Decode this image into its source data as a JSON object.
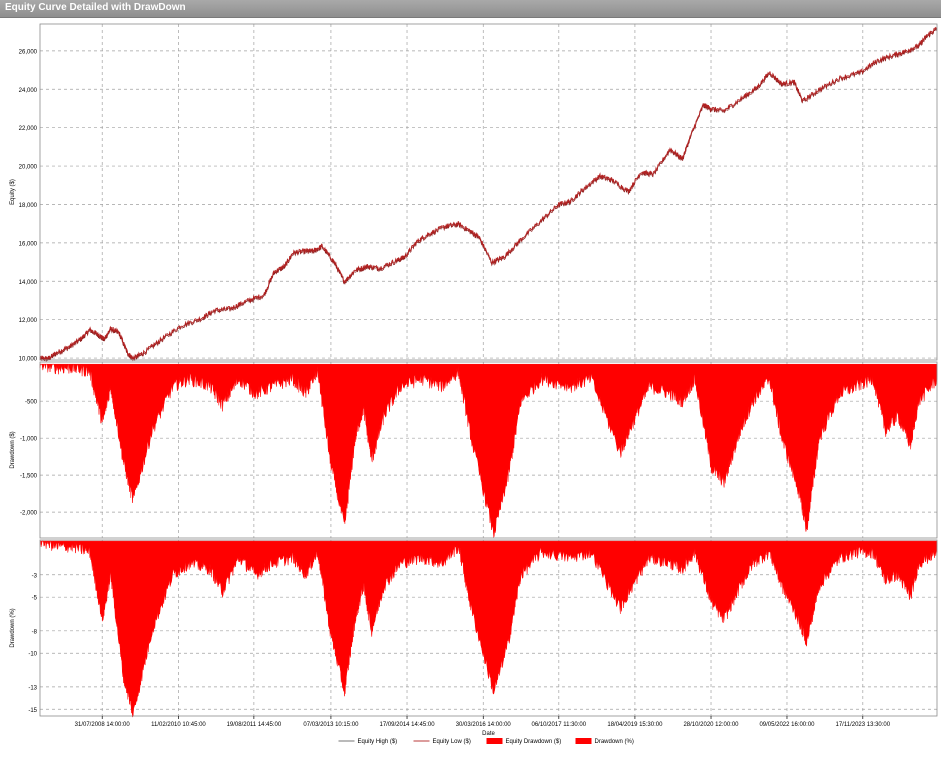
{
  "window": {
    "title": "Equity Curve Detailed with DrawDown"
  },
  "chart_data": {
    "type": "line",
    "title": "Equity Curve Detailed with DrawDown",
    "xlabel": "Date",
    "x_ticks": [
      "31/07/2008 14:00:00",
      "11/02/2010 10:45:00",
      "19/08/2011 14:45:00",
      "07/03/2013 10:15:00",
      "17/09/2014 14:45:00",
      "30/03/2016 14:00:00",
      "06/10/2017 11:30:00",
      "18/04/2019 15:30:00",
      "28/10/2020 12:00:00",
      "09/05/2022 16:00:00",
      "17/11/2023 13:30:00"
    ],
    "x_start": "2007-05-01",
    "x_end": "2025-05-15",
    "grid": true,
    "legend_position": "bottom",
    "colors": {
      "equity": "#b22222",
      "drawdown": "#ff0000",
      "grid": "#a0a0a0"
    },
    "legend": [
      "Equity High ($)",
      "Equity Low ($)",
      "Equity Drawdown ($)",
      "Drawdown (%)"
    ],
    "panels": [
      {
        "name": "equity",
        "ylabel": "Equity ($)",
        "ylim": [
          9900,
          27400
        ],
        "y_ticks": [
          10000,
          12000,
          14000,
          16000,
          18000,
          20000,
          22000,
          24000,
          26000
        ],
        "y_tick_labels": [
          "10,000",
          "12,000",
          "14,000",
          "16,000",
          "18,000",
          "20,000",
          "22,000",
          "24,000",
          "26,000"
        ],
        "series": [
          {
            "name": "Equity High ($)",
            "points": [
              [
                "2007-05-01",
                10000
              ],
              [
                "2007-07-01",
                10000
              ],
              [
                "2007-09-01",
                10300
              ],
              [
                "2007-12-01",
                10600
              ],
              [
                "2008-03-01",
                11050
              ],
              [
                "2008-05-01",
                11500
              ],
              [
                "2008-07-01",
                11250
              ],
              [
                "2008-08-15",
                11000
              ],
              [
                "2008-10-01",
                11550
              ],
              [
                "2008-12-01",
                11350
              ],
              [
                "2009-02-01",
                10300
              ],
              [
                "2009-03-15",
                10000
              ],
              [
                "2009-06-01",
                10300
              ],
              [
                "2009-10-01",
                10950
              ],
              [
                "2010-03-01",
                11700
              ],
              [
                "2010-08-01",
                12100
              ],
              [
                "2010-11-01",
                12500
              ],
              [
                "2011-03-01",
                12600
              ],
              [
                "2011-07-01",
                13000
              ],
              [
                "2011-11-01",
                13300
              ],
              [
                "2012-01-15",
                14500
              ],
              [
                "2012-04-01",
                14800
              ],
              [
                "2012-06-01",
                15500
              ],
              [
                "2012-09-01",
                15600
              ],
              [
                "2012-11-01",
                15600
              ],
              [
                "2013-01-01",
                15850
              ],
              [
                "2013-04-01",
                15000
              ],
              [
                "2013-06-15",
                14000
              ],
              [
                "2013-09-01",
                14600
              ],
              [
                "2013-12-01",
                14800
              ],
              [
                "2014-03-01",
                14700
              ],
              [
                "2014-07-01",
                15100
              ],
              [
                "2014-09-01",
                15300
              ],
              [
                "2014-12-01",
                16100
              ],
              [
                "2015-03-01",
                16500
              ],
              [
                "2015-07-01",
                16900
              ],
              [
                "2015-10-01",
                17000
              ],
              [
                "2016-01-01",
                16600
              ],
              [
                "2016-03-01",
                16300
              ],
              [
                "2016-06-01",
                15000
              ],
              [
                "2016-09-01",
                15300
              ],
              [
                "2017-01-01",
                16200
              ],
              [
                "2017-06-01",
                17200
              ],
              [
                "2017-10-01",
                18000
              ],
              [
                "2018-01-01",
                18200
              ],
              [
                "2018-04-01",
                18800
              ],
              [
                "2018-08-01",
                19500
              ],
              [
                "2018-11-01",
                19300
              ],
              [
                "2019-03-01",
                18700
              ],
              [
                "2019-06-01",
                19700
              ],
              [
                "2019-09-01",
                19600
              ],
              [
                "2020-01-01",
                20900
              ],
              [
                "2020-04-01",
                20400
              ],
              [
                "2020-06-01",
                21600
              ],
              [
                "2020-09-01",
                23200
              ],
              [
                "2020-11-01",
                23000
              ],
              [
                "2021-02-01",
                22900
              ],
              [
                "2021-06-01",
                23500
              ],
              [
                "2021-10-01",
                24100
              ],
              [
                "2022-01-01",
                24900
              ],
              [
                "2022-04-01",
                24300
              ],
              [
                "2022-07-01",
                24400
              ],
              [
                "2022-09-01",
                23400
              ],
              [
                "2023-01-01",
                24000
              ],
              [
                "2023-06-01",
                24600
              ],
              [
                "2023-11-01",
                24900
              ],
              [
                "2024-03-01",
                25500
              ],
              [
                "2024-07-01",
                25800
              ],
              [
                "2024-10-01",
                26000
              ],
              [
                "2025-01-01",
                26300
              ],
              [
                "2025-03-01",
                26800
              ],
              [
                "2025-05-15",
                27200
              ]
            ]
          },
          {
            "name": "Equity Low ($)",
            "offset": -80
          }
        ]
      },
      {
        "name": "equity_drawdown",
        "ylabel": "Drawdown ($)",
        "ylim": [
          -2350,
          30
        ],
        "y_ticks": [
          -500,
          -1000,
          -1500,
          -2000
        ],
        "y_tick_labels": [
          "-500",
          "-1,000",
          "-1,500",
          "-2,000"
        ],
        "series": [
          {
            "name": "Equity Drawdown ($)",
            "points": [
              [
                "2007-05-01",
                0
              ],
              [
                "2007-09-01",
                -50
              ],
              [
                "2008-01-01",
                -50
              ],
              [
                "2008-05-01",
                -100
              ],
              [
                "2008-08-01",
                -800
              ],
              [
                "2008-10-01",
                -300
              ],
              [
                "2009-01-01",
                -1300
              ],
              [
                "2009-03-15",
                -1850
              ],
              [
                "2009-08-01",
                -900
              ],
              [
                "2010-01-01",
                -300
              ],
              [
                "2010-05-01",
                -200
              ],
              [
                "2010-10-01",
                -300
              ],
              [
                "2011-01-01",
                -550
              ],
              [
                "2011-05-01",
                -200
              ],
              [
                "2011-09-01",
                -400
              ],
              [
                "2012-01-01",
                -300
              ],
              [
                "2012-06-01",
                -200
              ],
              [
                "2012-09-01",
                -400
              ],
              [
                "2012-12-01",
                -100
              ],
              [
                "2013-03-01",
                -1300
              ],
              [
                "2013-06-15",
                -2200
              ],
              [
                "2013-09-01",
                -1000
              ],
              [
                "2013-11-01",
                -600
              ],
              [
                "2014-01-01",
                -1300
              ],
              [
                "2014-04-01",
                -700
              ],
              [
                "2014-08-01",
                -300
              ],
              [
                "2015-01-01",
                -200
              ],
              [
                "2015-06-01",
                -300
              ],
              [
                "2015-10-01",
                -100
              ],
              [
                "2016-01-01",
                -1000
              ],
              [
                "2016-06-15",
                -2300
              ],
              [
                "2016-10-01",
                -1500
              ],
              [
                "2017-01-01",
                -500
              ],
              [
                "2017-06-01",
                -200
              ],
              [
                "2018-01-01",
                -300
              ],
              [
                "2018-06-01",
                -200
              ],
              [
                "2019-01-01",
                -1200
              ],
              [
                "2019-04-01",
                -800
              ],
              [
                "2019-08-01",
                -300
              ],
              [
                "2020-01-01",
                -400
              ],
              [
                "2020-04-01",
                -500
              ],
              [
                "2020-07-01",
                -200
              ],
              [
                "2020-11-01",
                -1400
              ],
              [
                "2021-02-01",
                -1600
              ],
              [
                "2021-06-01",
                -900
              ],
              [
                "2021-09-01",
                -500
              ],
              [
                "2022-01-01",
                -200
              ],
              [
                "2022-04-01",
                -1000
              ],
              [
                "2022-08-01",
                -1700
              ],
              [
                "2022-10-01",
                -2250
              ],
              [
                "2023-01-01",
                -1000
              ],
              [
                "2023-06-01",
                -400
              ],
              [
                "2023-10-01",
                -300
              ],
              [
                "2024-02-01",
                -200
              ],
              [
                "2024-05-01",
                -900
              ],
              [
                "2024-08-01",
                -700
              ],
              [
                "2024-11-01",
                -1100
              ],
              [
                "2025-01-01",
                -500
              ],
              [
                "2025-05-15",
                -200
              ]
            ]
          }
        ]
      },
      {
        "name": "drawdown_pct",
        "ylabel": "Drawdown (%)",
        "ylim": [
          -15.6,
          0.1
        ],
        "y_ticks": [
          -3,
          -5,
          -8,
          -10,
          -13,
          -15
        ],
        "y_tick_labels": [
          "-3",
          "-5",
          "-8",
          "-10",
          "-13",
          "-15"
        ],
        "series": [
          {
            "name": "Drawdown (%)",
            "points": [
              [
                "2007-05-01",
                0
              ],
              [
                "2007-09-01",
                -0.5
              ],
              [
                "2008-01-01",
                -0.5
              ],
              [
                "2008-05-01",
                -1
              ],
              [
                "2008-08-01",
                -7
              ],
              [
                "2008-10-01",
                -3
              ],
              [
                "2009-01-01",
                -12
              ],
              [
                "2009-03-15",
                -15.5
              ],
              [
                "2009-08-01",
                -8
              ],
              [
                "2010-01-01",
                -3
              ],
              [
                "2010-05-01",
                -2
              ],
              [
                "2010-10-01",
                -2.5
              ],
              [
                "2011-01-01",
                -4.5
              ],
              [
                "2011-05-01",
                -1.5
              ],
              [
                "2011-09-01",
                -3
              ],
              [
                "2012-01-01",
                -2
              ],
              [
                "2012-06-01",
                -1.5
              ],
              [
                "2012-09-01",
                -3
              ],
              [
                "2012-12-01",
                -1
              ],
              [
                "2013-03-01",
                -8
              ],
              [
                "2013-06-15",
                -13.5
              ],
              [
                "2013-09-01",
                -7
              ],
              [
                "2013-11-01",
                -4
              ],
              [
                "2014-01-01",
                -8
              ],
              [
                "2014-04-01",
                -4
              ],
              [
                "2014-08-01",
                -2
              ],
              [
                "2015-01-01",
                -1.5
              ],
              [
                "2015-06-01",
                -2
              ],
              [
                "2015-10-01",
                -0.5
              ],
              [
                "2016-01-01",
                -6
              ],
              [
                "2016-06-15",
                -13.5
              ],
              [
                "2016-10-01",
                -9
              ],
              [
                "2017-01-01",
                -3
              ],
              [
                "2017-06-01",
                -1
              ],
              [
                "2018-01-01",
                -1.5
              ],
              [
                "2018-06-01",
                -1
              ],
              [
                "2019-01-01",
                -6
              ],
              [
                "2019-04-01",
                -4
              ],
              [
                "2019-08-01",
                -1.5
              ],
              [
                "2020-01-01",
                -2
              ],
              [
                "2020-04-01",
                -2.5
              ],
              [
                "2020-07-01",
                -1
              ],
              [
                "2020-11-01",
                -5.5
              ],
              [
                "2021-02-01",
                -7
              ],
              [
                "2021-06-01",
                -4
              ],
              [
                "2021-09-01",
                -2
              ],
              [
                "2022-01-01",
                -1
              ],
              [
                "2022-04-01",
                -4
              ],
              [
                "2022-08-01",
                -7
              ],
              [
                "2022-10-01",
                -9
              ],
              [
                "2023-01-01",
                -4
              ],
              [
                "2023-06-01",
                -1.5
              ],
              [
                "2023-10-01",
                -1
              ],
              [
                "2024-02-01",
                -1
              ],
              [
                "2024-05-01",
                -3.5
              ],
              [
                "2024-08-01",
                -3
              ],
              [
                "2024-11-01",
                -5
              ],
              [
                "2025-01-01",
                -2
              ],
              [
                "2025-05-15",
                -1
              ]
            ]
          }
        ]
      }
    ]
  }
}
